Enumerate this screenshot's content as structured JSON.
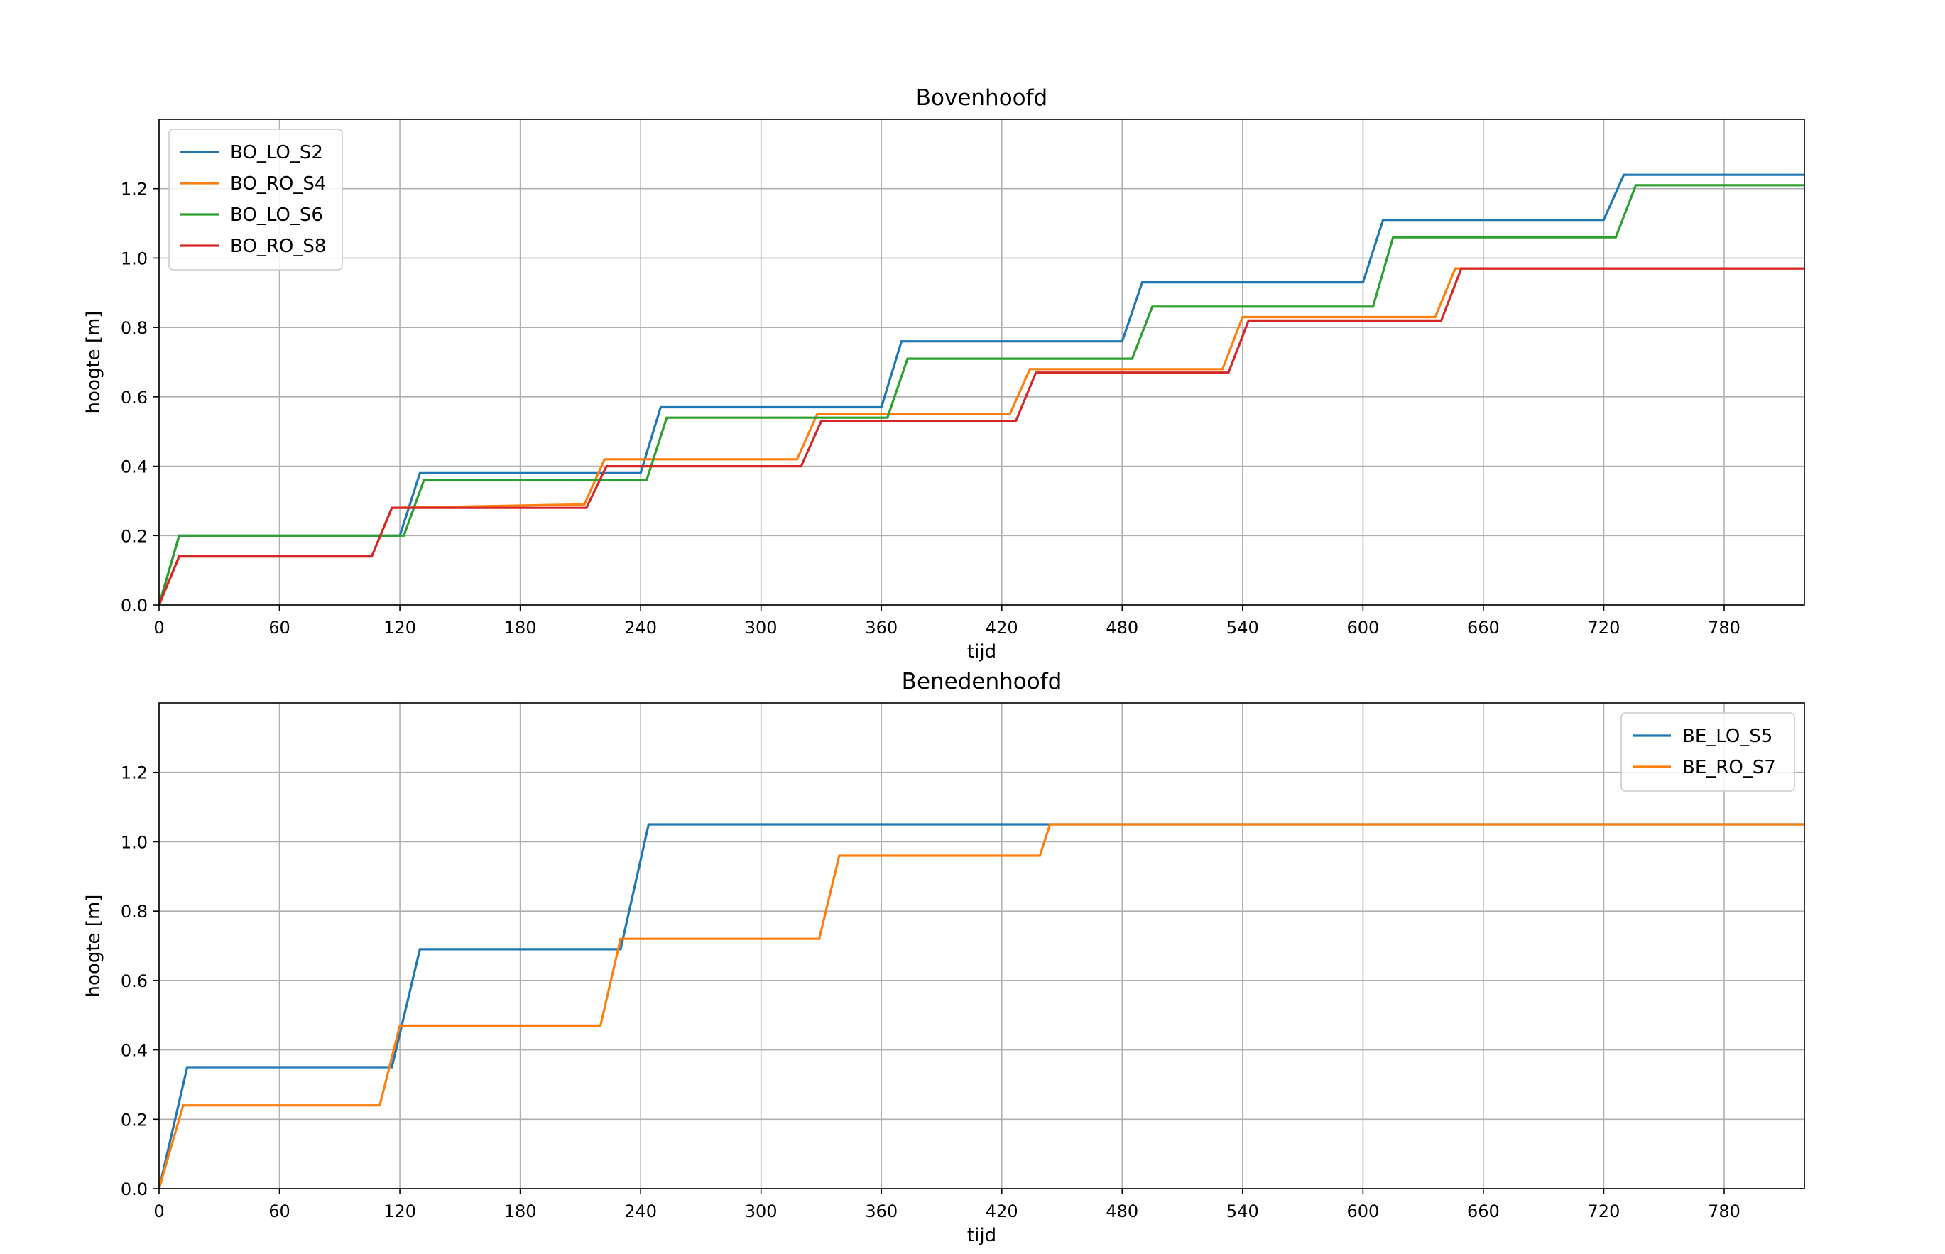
{
  "chart_data": [
    {
      "type": "line",
      "title": "Bovenhoofd",
      "xlabel": "tijd",
      "ylabel": "hoogte [m]",
      "xlim": [
        0,
        820
      ],
      "ylim": [
        0,
        1.4
      ],
      "xticks": [
        0,
        60,
        120,
        180,
        240,
        300,
        360,
        420,
        480,
        540,
        600,
        660,
        720,
        780
      ],
      "yticks": [
        0.0,
        0.2,
        0.4,
        0.6,
        0.8,
        1.0,
        1.2
      ],
      "ytick_labels": [
        "0.0",
        "0.2",
        "0.4",
        "0.6",
        "0.8",
        "1.0",
        "1.2"
      ],
      "grid": true,
      "legend_loc": "upper-left",
      "series": [
        {
          "name": "BO_LO_S2",
          "color": "#1f77b4",
          "x": [
            0,
            10,
            120,
            130,
            240,
            250,
            360,
            370,
            480,
            490,
            600,
            610,
            720,
            730,
            820
          ],
          "y": [
            0,
            0.2,
            0.2,
            0.38,
            0.38,
            0.57,
            0.57,
            0.76,
            0.76,
            0.93,
            0.93,
            1.11,
            1.11,
            1.24,
            1.24
          ]
        },
        {
          "name": "BO_RO_S4",
          "color": "#ff7f0e",
          "x": [
            0,
            10,
            106,
            116,
            212,
            222,
            318,
            328,
            424,
            434,
            530,
            540,
            636,
            646,
            820
          ],
          "y": [
            0,
            0.14,
            0.14,
            0.28,
            0.29,
            0.42,
            0.42,
            0.55,
            0.55,
            0.68,
            0.68,
            0.83,
            0.83,
            0.97,
            0.97
          ]
        },
        {
          "name": "BO_LO_S6",
          "color": "#2ca02c",
          "x": [
            0,
            10,
            122,
            132,
            243,
            253,
            363,
            373,
            485,
            495,
            605,
            615,
            726,
            736,
            820
          ],
          "y": [
            0,
            0.2,
            0.2,
            0.36,
            0.36,
            0.54,
            0.54,
            0.71,
            0.71,
            0.86,
            0.86,
            1.06,
            1.06,
            1.21,
            1.21
          ]
        },
        {
          "name": "BO_RO_S8",
          "color": "#d62728",
          "x": [
            0,
            10,
            106,
            116,
            213,
            223,
            320,
            330,
            427,
            437,
            533,
            543,
            639,
            649,
            820
          ],
          "y": [
            0,
            0.14,
            0.14,
            0.28,
            0.28,
            0.4,
            0.4,
            0.53,
            0.53,
            0.67,
            0.67,
            0.82,
            0.82,
            0.97,
            0.97
          ]
        }
      ]
    },
    {
      "type": "line",
      "title": "Benedenhoofd",
      "xlabel": "tijd",
      "ylabel": "hoogte [m]",
      "xlim": [
        0,
        820
      ],
      "ylim": [
        0,
        1.4
      ],
      "xticks": [
        0,
        60,
        120,
        180,
        240,
        300,
        360,
        420,
        480,
        540,
        600,
        660,
        720,
        780
      ],
      "yticks": [
        0.0,
        0.2,
        0.4,
        0.6,
        0.8,
        1.0,
        1.2
      ],
      "ytick_labels": [
        "0.0",
        "0.2",
        "0.4",
        "0.6",
        "0.8",
        "1.0",
        "1.2"
      ],
      "grid": true,
      "legend_loc": "upper-right",
      "series": [
        {
          "name": "BE_LO_S5",
          "color": "#1f77b4",
          "x": [
            0,
            14,
            116,
            130,
            230,
            244,
            820
          ],
          "y": [
            0,
            0.35,
            0.35,
            0.69,
            0.69,
            1.05,
            1.05
          ]
        },
        {
          "name": "BE_RO_S7",
          "color": "#ff7f0e",
          "x": [
            0,
            12,
            110,
            120,
            220,
            230,
            329,
            339,
            439,
            444,
            820
          ],
          "y": [
            0,
            0.24,
            0.24,
            0.47,
            0.47,
            0.72,
            0.72,
            0.96,
            0.96,
            1.05,
            1.05
          ]
        }
      ]
    }
  ]
}
